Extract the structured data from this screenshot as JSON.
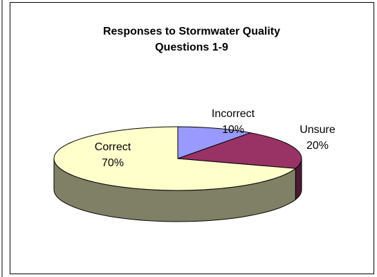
{
  "chart_data": {
    "type": "pie3d",
    "title": "Responses to Stormwater Quality Questions 1-9",
    "categories": [
      "Incorrect",
      "Unsure",
      "Correct"
    ],
    "values": [
      10,
      20,
      70
    ],
    "value_labels": [
      "10%",
      "20%",
      "70%"
    ],
    "colors": [
      "#9999ff",
      "#993366",
      "#ffffcc"
    ]
  }
}
